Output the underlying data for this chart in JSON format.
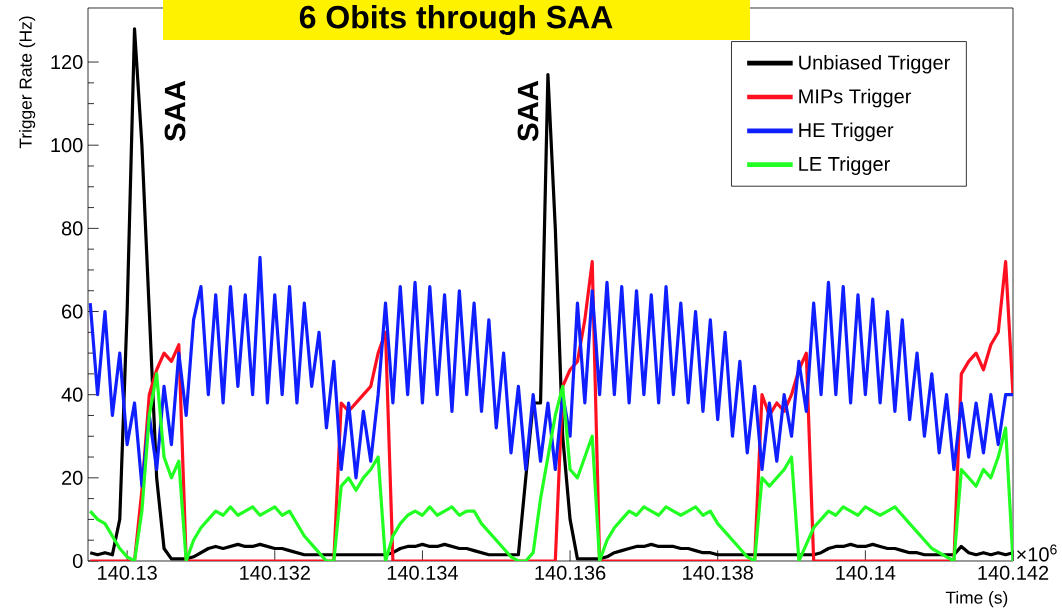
{
  "chart_data": {
    "type": "line",
    "title": "6 Obits through SAA",
    "xlabel": "Time (s)",
    "ylabel": "Trigger Rate (Hz)",
    "xlim": [
      140.12947,
      140.142
    ],
    "ylim": [
      0,
      133
    ],
    "xticks": [
      140.13,
      140.132,
      140.134,
      140.136,
      140.138,
      140.14,
      140.142
    ],
    "yticks": [
      0,
      20,
      40,
      60,
      80,
      100,
      120
    ],
    "legend": "top right",
    "annotations": [
      "SAA",
      "SAA",
      "×10$^{6}$"
    ],
    "x": [
      140.1295,
      140.1296,
      140.1297,
      140.1298,
      140.1299,
      140.13,
      140.1301,
      140.1302,
      140.1303,
      140.1304,
      140.1305,
      140.1306,
      140.1307,
      140.1308,
      140.1309,
      140.131,
      140.1311,
      140.1312,
      140.1313,
      140.1314,
      140.1315,
      140.1316,
      140.1317,
      140.1318,
      140.1319,
      140.132,
      140.1321,
      140.1322,
      140.1323,
      140.1324,
      140.1325,
      140.1326,
      140.1327,
      140.1328,
      140.1329,
      140.133,
      140.1331,
      140.1332,
      140.1333,
      140.1334,
      140.1335,
      140.1336,
      140.1337,
      140.1338,
      140.1339,
      140.134,
      140.1341,
      140.1342,
      140.1343,
      140.1344,
      140.1345,
      140.1346,
      140.1347,
      140.1348,
      140.1349,
      140.135,
      140.1351,
      140.1352,
      140.1353,
      140.1354,
      140.1355,
      140.1356,
      140.1357,
      140.1358,
      140.1359,
      140.136,
      140.1361,
      140.1362,
      140.1363,
      140.1364,
      140.1365,
      140.1366,
      140.1367,
      140.1368,
      140.1369,
      140.137,
      140.1371,
      140.1372,
      140.1373,
      140.1374,
      140.1375,
      140.1376,
      140.1377,
      140.1378,
      140.1379,
      140.138,
      140.1381,
      140.1382,
      140.1383,
      140.1384,
      140.1385,
      140.1386,
      140.1387,
      140.1388,
      140.1389,
      140.139,
      140.1391,
      140.1392,
      140.1393,
      140.1394,
      140.1395,
      140.1396,
      140.1397,
      140.1398,
      140.1399,
      140.14,
      140.1401,
      140.1402,
      140.1403,
      140.1404,
      140.1405,
      140.1406,
      140.1407,
      140.1408,
      140.1409,
      140.141,
      140.1411,
      140.1412,
      140.1413,
      140.1414,
      140.1415,
      140.1416,
      140.1417,
      140.1418,
      140.1419,
      140.142
    ],
    "series": [
      {
        "name": "Unbiased Trigger",
        "color": "#000000",
        "values": [
          2,
          1.5,
          2,
          1.5,
          10,
          60,
          128,
          100,
          60,
          20,
          3,
          0.5,
          0.5,
          0.5,
          1,
          2,
          3,
          3.5,
          3,
          3.5,
          4,
          3.5,
          3.5,
          4,
          3.5,
          3,
          3,
          2.5,
          2,
          1.5,
          1.5,
          1.5,
          1.5,
          1.5,
          1.5,
          1.5,
          1.5,
          1.5,
          1.5,
          1.5,
          1.5,
          2,
          3,
          3.5,
          3.5,
          4,
          3.5,
          3.5,
          4,
          3.5,
          3,
          3,
          2.5,
          2,
          1.5,
          1.5,
          1.5,
          1.5,
          1.5,
          20,
          38,
          38,
          117,
          80,
          30,
          10,
          0.5,
          0.5,
          0.5,
          0.5,
          1,
          2,
          2.5,
          3,
          3.5,
          3.5,
          4,
          3.5,
          3.5,
          3.5,
          3,
          3,
          2.5,
          2,
          2,
          1.5,
          1.5,
          1.5,
          1.5,
          1.5,
          1.5,
          1.5,
          1.5,
          1.5,
          1.5,
          1.5,
          1.5,
          1.5,
          1.5,
          2,
          3,
          3.5,
          3.5,
          4,
          3.5,
          3.5,
          4,
          3.5,
          3,
          3,
          2.5,
          2,
          2,
          1.5,
          1.5,
          1.5,
          1.5,
          1.5,
          3.5,
          2,
          1.5,
          2,
          1.5,
          2,
          1.5,
          2
        ]
      },
      {
        "name": "MIPs Trigger",
        "color": "#ff1020",
        "values": [
          0,
          0,
          0,
          0,
          0,
          0,
          0,
          17,
          40,
          46,
          50,
          48,
          52,
          0,
          0,
          0,
          0,
          0,
          0,
          0,
          0,
          0,
          0,
          0,
          0,
          0,
          0,
          0,
          0,
          0,
          0,
          0,
          0,
          0,
          38,
          36,
          38,
          40,
          42,
          50,
          55,
          0,
          0,
          0,
          0,
          0,
          0,
          0,
          0,
          0,
          0,
          0,
          0,
          0,
          0,
          0,
          0,
          0,
          0,
          0,
          0,
          0,
          0,
          0,
          42,
          46,
          48,
          58,
          72,
          0,
          0,
          0,
          0,
          0,
          0,
          0,
          0,
          0,
          0,
          0,
          0,
          0,
          0,
          0,
          0,
          0,
          0,
          0,
          0,
          0,
          0,
          40,
          35,
          38,
          36,
          40,
          46,
          50,
          0,
          0,
          0,
          0,
          0,
          0,
          0,
          0,
          0,
          0,
          0,
          0,
          0,
          0,
          0,
          0,
          0,
          0,
          0,
          0,
          45,
          48,
          50,
          46,
          52,
          55,
          72,
          40
        ]
      },
      {
        "name": "HE Trigger",
        "color": "#0f1fff",
        "values": [
          62,
          40,
          60,
          35,
          50,
          28,
          38,
          18,
          35,
          22,
          42,
          28,
          50,
          35,
          58,
          66,
          40,
          64,
          38,
          66,
          42,
          64,
          40,
          73,
          38,
          64,
          40,
          66,
          38,
          62,
          42,
          55,
          32,
          48,
          22,
          38,
          20,
          36,
          24,
          40,
          62,
          38,
          66,
          40,
          67,
          38,
          66,
          40,
          64,
          36,
          65,
          40,
          62,
          36,
          58,
          32,
          50,
          26,
          42,
          22,
          40,
          24,
          38,
          22,
          40,
          30,
          62,
          38,
          65,
          40,
          67,
          40,
          66,
          38,
          65,
          40,
          64,
          38,
          66,
          40,
          62,
          38,
          60,
          36,
          58,
          34,
          55,
          30,
          48,
          26,
          42,
          22,
          38,
          24,
          40,
          30,
          48,
          36,
          62,
          40,
          67,
          40,
          66,
          38,
          64,
          40,
          63,
          38,
          60,
          36,
          58,
          34,
          50,
          30,
          45,
          26,
          40,
          22,
          38,
          25,
          38,
          26,
          40,
          28,
          40,
          40
        ]
      },
      {
        "name": "LE Trigger",
        "color": "#22ff22",
        "values": [
          12,
          10,
          9,
          6,
          3,
          1,
          0,
          12,
          35,
          45,
          25,
          20,
          24,
          0,
          5,
          8,
          10,
          12,
          11,
          13,
          11,
          12,
          13,
          11,
          12,
          13,
          11,
          12,
          9,
          6,
          4,
          2,
          0,
          0,
          18,
          20,
          17,
          20,
          22,
          25,
          0,
          6,
          9,
          11,
          12,
          11,
          13,
          11,
          12,
          13,
          11,
          12,
          12,
          9,
          7,
          5,
          3,
          1,
          0,
          0,
          2,
          15,
          25,
          35,
          42,
          22,
          20,
          25,
          30,
          0,
          5,
          8,
          10,
          12,
          11,
          13,
          12,
          11,
          13,
          12,
          11,
          12,
          13,
          11,
          12,
          9,
          7,
          5,
          3,
          1,
          0,
          20,
          18,
          20,
          22,
          25,
          0,
          4,
          8,
          10,
          12,
          11,
          13,
          12,
          11,
          13,
          12,
          11,
          12,
          13,
          11,
          9,
          7,
          5,
          3,
          2,
          1,
          0,
          22,
          20,
          18,
          22,
          20,
          25,
          32,
          0
        ]
      }
    ]
  }
}
